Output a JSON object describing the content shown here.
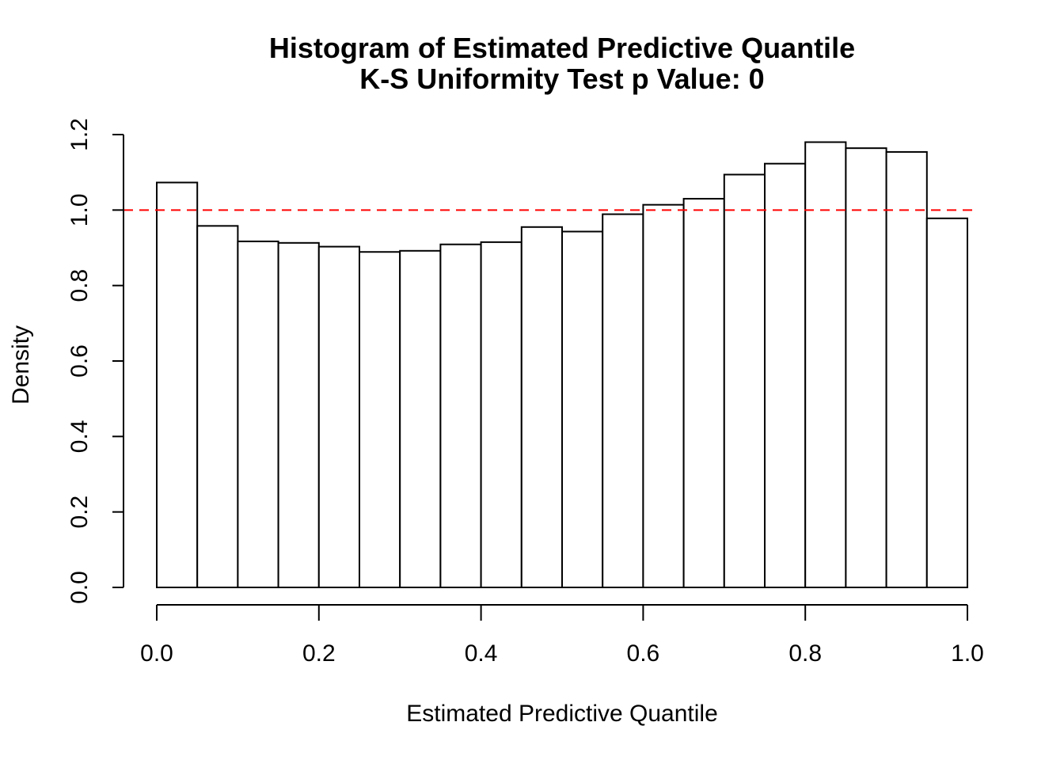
{
  "chart_data": {
    "type": "bar",
    "title": "Histogram of Estimated Predictive Quantile",
    "subtitle": "K-S Uniformity Test p Value: 0",
    "xlabel": "Estimated Predictive Quantile",
    "ylabel": "Density",
    "xlim": [
      0,
      1
    ],
    "ylim": [
      0,
      1.2
    ],
    "x_ticks": [
      "0.0",
      "0.2",
      "0.4",
      "0.6",
      "0.8",
      "1.0"
    ],
    "y_ticks": [
      "0.0",
      "0.2",
      "0.4",
      "0.6",
      "0.8",
      "1.0",
      "1.2"
    ],
    "bin_edges": [
      0.0,
      0.05,
      0.1,
      0.15,
      0.2,
      0.25,
      0.3,
      0.35,
      0.4,
      0.45,
      0.5,
      0.55,
      0.6,
      0.65,
      0.7,
      0.75,
      0.8,
      0.85,
      0.9,
      0.95,
      1.0
    ],
    "values": [
      1.073,
      0.958,
      0.917,
      0.913,
      0.903,
      0.889,
      0.892,
      0.909,
      0.915,
      0.955,
      0.943,
      0.989,
      1.014,
      1.03,
      1.094,
      1.123,
      1.18,
      1.164,
      1.154,
      0.978
    ],
    "reference_line": {
      "y": 1.0,
      "style": "dashed",
      "color": "#ff0000"
    },
    "grid": false,
    "bar_fill": "#ffffff",
    "bar_stroke": "#000000"
  }
}
